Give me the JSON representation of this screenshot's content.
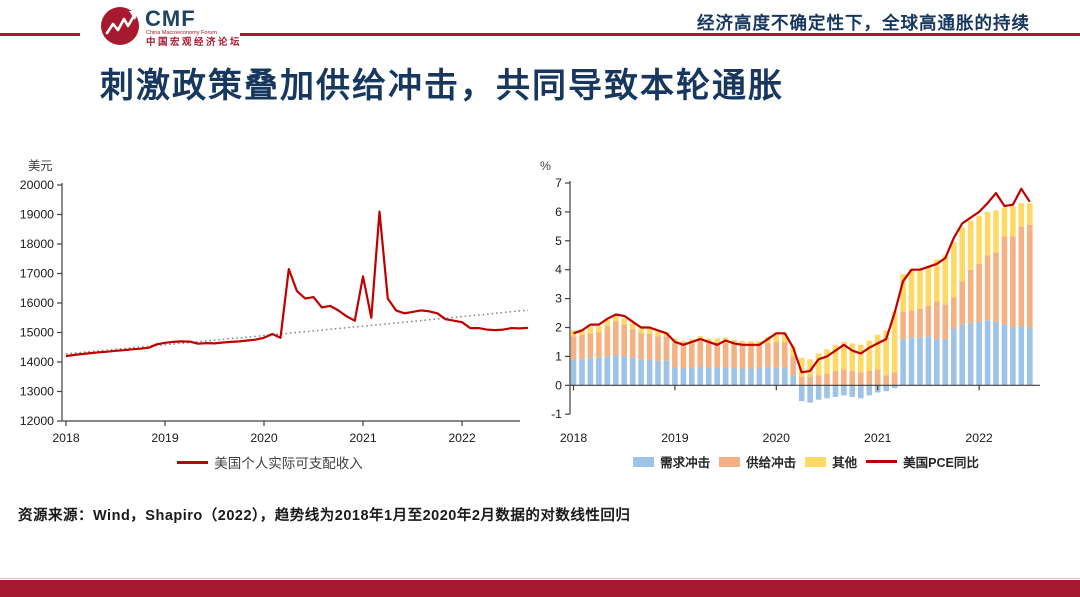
{
  "header": {
    "logo": {
      "acronym": "CMF",
      "subtitle_en": "China Macroeconomy Forum",
      "subtitle_cn": "中国宏观经济论坛"
    },
    "topic": "经济高度不确定性下，全球高通胀的持续"
  },
  "title": "刺激政策叠加供给冲击，共同导致本轮通胀",
  "footer_source": "资源来源：Wind，Shapiro（2022），趋势线为2018年1月至2020年2月数据的对数线性回归",
  "colors": {
    "accent_red": "#A6192E",
    "title_navy": "#17375E",
    "line_red": "#C00000",
    "demand_blue": "#9DC3E6",
    "supply_orange": "#F4B183",
    "other_yellow": "#FFD966",
    "trend_gray": "#7F7F7F",
    "axis_gray": "#404040"
  },
  "chart_data": [
    {
      "type": "line",
      "unit_label": "美元",
      "x_frequency": "monthly",
      "x_start": "2018-01",
      "x_tick_labels": [
        "2018",
        "2019",
        "2020",
        "2021",
        "2022"
      ],
      "ylim": [
        12000,
        20000
      ],
      "ytick_step": 1000,
      "grid": false,
      "legend_position": "bottom",
      "legend": [
        {
          "label": "美国个人实际可支配收入",
          "color": "#C00000",
          "type": "line"
        }
      ],
      "values": [
        14200,
        14240,
        14270,
        14300,
        14330,
        14350,
        14380,
        14400,
        14430,
        14450,
        14480,
        14600,
        14650,
        14680,
        14700,
        14690,
        14620,
        14640,
        14630,
        14660,
        14680,
        14700,
        14730,
        14760,
        14820,
        14950,
        14820,
        17150,
        16400,
        16150,
        16200,
        15850,
        15900,
        15750,
        15550,
        15400,
        16900,
        15500,
        19100,
        16150,
        15750,
        15650,
        15700,
        15750,
        15720,
        15650,
        15450,
        15400,
        15350,
        15150,
        15150,
        15100,
        15080,
        15100,
        15150,
        15140,
        15160
      ],
      "trend": {
        "style": "dotted",
        "regression": "log-linear 2018-01..2020-02",
        "start": 14280,
        "end": 15760
      }
    },
    {
      "type": "stacked_bar_line",
      "unit_label": "%",
      "x_frequency": "monthly",
      "x_start": "2018-01",
      "x_tick_labels": [
        "2018",
        "2019",
        "2020",
        "2021",
        "2022"
      ],
      "ylim": [
        -1,
        7
      ],
      "ytick_step": 1,
      "grid": false,
      "legend_position": "bottom",
      "series": [
        {
          "name": "需求冲击",
          "color": "#9DC3E6",
          "values": [
            0.9,
            0.92,
            0.95,
            0.95,
            1.0,
            1.02,
            1.0,
            0.95,
            0.9,
            0.88,
            0.85,
            0.85,
            0.62,
            0.58,
            0.6,
            0.65,
            0.62,
            0.62,
            0.62,
            0.6,
            0.58,
            0.58,
            0.58,
            0.62,
            0.6,
            0.6,
            0.35,
            -0.55,
            -0.6,
            -0.5,
            -0.45,
            -0.4,
            -0.35,
            -0.4,
            -0.45,
            -0.35,
            -0.25,
            -0.2,
            -0.1,
            1.6,
            1.65,
            1.65,
            1.7,
            1.6,
            1.6,
            1.95,
            2.1,
            2.15,
            2.2,
            2.25,
            2.2,
            2.1,
            2.0,
            2.05,
            2.0
          ]
        },
        {
          "name": "供给冲击",
          "color": "#F4B183",
          "values": [
            0.8,
            0.82,
            0.85,
            0.88,
            1.05,
            1.2,
            1.1,
            1.0,
            0.9,
            0.9,
            0.85,
            0.85,
            0.85,
            0.8,
            0.85,
            0.88,
            0.85,
            0.85,
            0.85,
            0.82,
            0.8,
            0.8,
            0.8,
            0.85,
            0.9,
            0.9,
            0.65,
            0.3,
            0.3,
            0.35,
            0.4,
            0.5,
            0.55,
            0.5,
            0.45,
            0.5,
            0.55,
            0.35,
            0.45,
            0.95,
            0.95,
            1.0,
            1.05,
            1.3,
            1.2,
            1.1,
            1.5,
            1.85,
            2.0,
            2.25,
            2.4,
            3.05,
            3.15,
            3.45,
            3.55
          ]
        },
        {
          "name": "其他",
          "color": "#FFD966",
          "values": [
            0.2,
            0.2,
            0.22,
            0.22,
            0.2,
            0.22,
            0.22,
            0.2,
            0.18,
            0.18,
            0.18,
            0.15,
            0.15,
            0.15,
            0.15,
            0.18,
            0.15,
            0.15,
            0.18,
            0.15,
            0.15,
            0.15,
            0.15,
            0.2,
            0.3,
            0.3,
            0.35,
            0.65,
            0.6,
            0.75,
            0.85,
            0.9,
            0.95,
            0.95,
            0.95,
            1.05,
            1.2,
            1.55,
            2.1,
            1.3,
            1.4,
            1.4,
            1.4,
            1.45,
            1.7,
            1.9,
            1.85,
            1.7,
            1.65,
            1.5,
            1.45,
            1.0,
            1.05,
            0.8,
            0.75
          ]
        }
      ],
      "line": {
        "name": "美国PCE同比",
        "color": "#C00000",
        "values": [
          1.8,
          1.9,
          2.1,
          2.1,
          2.3,
          2.45,
          2.4,
          2.2,
          2.0,
          2.0,
          1.9,
          1.8,
          1.5,
          1.4,
          1.5,
          1.6,
          1.5,
          1.4,
          1.55,
          1.45,
          1.4,
          1.4,
          1.4,
          1.6,
          1.8,
          1.8,
          1.3,
          0.45,
          0.5,
          0.9,
          1.0,
          1.2,
          1.4,
          1.2,
          1.1,
          1.3,
          1.45,
          1.6,
          2.5,
          3.6,
          4.0,
          4.0,
          4.1,
          4.2,
          4.4,
          5.1,
          5.6,
          5.8,
          6.0,
          6.3,
          6.65,
          6.2,
          6.25,
          6.8,
          6.35
        ]
      }
    }
  ]
}
